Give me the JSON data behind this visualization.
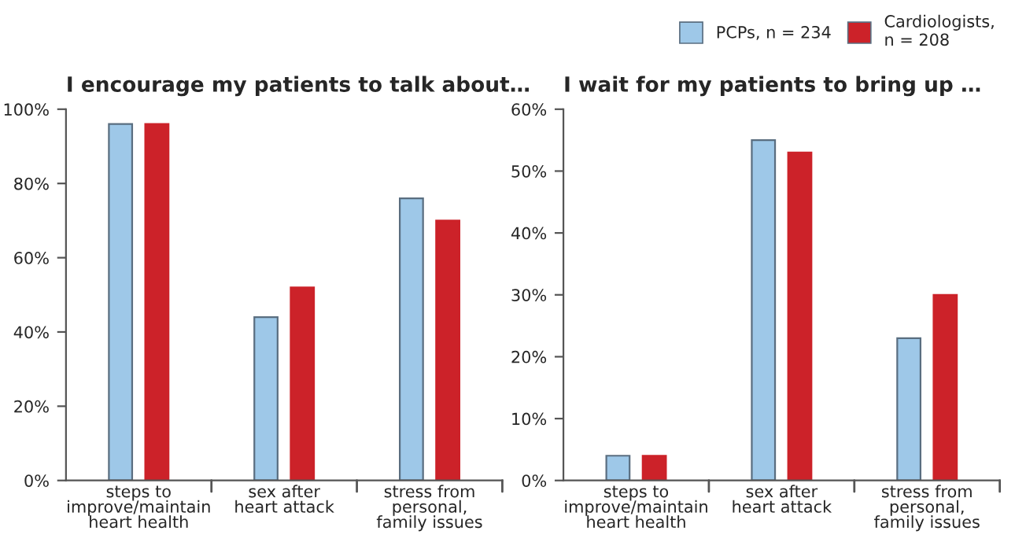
{
  "chart_data": [
    {
      "type": "bar",
      "title": "I encourage my patients to talk about…",
      "categories": [
        "steps to\nimprove/maintain\nheart health",
        "sex after\nheart attack",
        "stress from\npersonal,\nfamily issues"
      ],
      "series": [
        {
          "color": "#9ec8e8",
          "values": [
            96,
            44,
            76
          ]
        },
        {
          "color": "#cc2229",
          "values": [
            96,
            52,
            70
          ]
        }
      ],
      "ylim": [
        0,
        100
      ],
      "yticks": [
        {
          "value": 0,
          "label": "0%"
        },
        {
          "value": 20,
          "label": "20%"
        },
        {
          "value": 40,
          "label": "40%"
        },
        {
          "value": 60,
          "label": "60%"
        },
        {
          "value": 80,
          "label": "80%"
        },
        {
          "value": 100,
          "label": "100%"
        }
      ],
      "grid": false
    },
    {
      "type": "bar",
      "title": "I wait for my patients to bring up …",
      "categories": [
        "steps to\nimprove/maintain\nheart health",
        "sex after\nheart attack",
        "stress from\npersonal,\nfamily issues"
      ],
      "series": [
        {
          "name": "PCPs, n = 234",
          "color": "#9ec8e8",
          "values": [
            4,
            55,
            23
          ]
        },
        {
          "name": "Cardiologists,\nn = 208",
          "color": "#cc2229",
          "values": [
            4,
            53,
            30
          ]
        }
      ],
      "ylim": [
        0,
        60
      ],
      "yticks": [
        {
          "value": 0,
          "label": "0%"
        },
        {
          "value": 10,
          "label": "10%"
        },
        {
          "value": 20,
          "label": "20%"
        },
        {
          "value": 30,
          "label": "30%"
        },
        {
          "value": 40,
          "label": "40%"
        },
        {
          "value": 50,
          "label": "50%"
        },
        {
          "value": 60,
          "label": "60%"
        }
      ],
      "grid": false,
      "legend": "top right"
    }
  ]
}
